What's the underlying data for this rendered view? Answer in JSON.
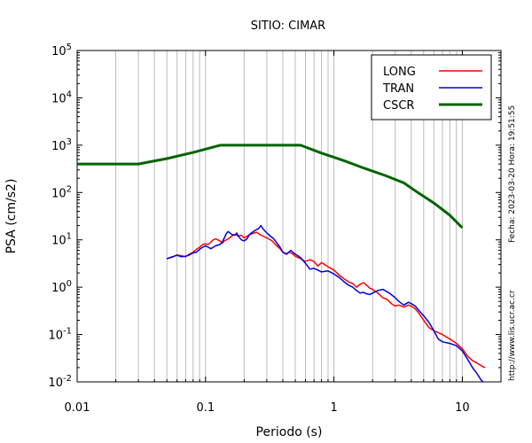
{
  "chart_data": {
    "type": "line",
    "title": "SITIO: CIMAR",
    "xlabel": "Periodo (s)",
    "ylabel": "PSA (cm/s2)",
    "xscale": "log",
    "yscale": "log",
    "xlim": [
      0.01,
      20
    ],
    "ylim": [
      0.01,
      100000
    ],
    "x_ticks": [
      {
        "value": 0.01,
        "label": "0.01"
      },
      {
        "value": 0.1,
        "label": "0.1"
      },
      {
        "value": 1,
        "label": "1"
      },
      {
        "value": 10,
        "label": "10"
      }
    ],
    "y_ticks": [
      {
        "value": 0.01,
        "base": "10",
        "exp": "-2"
      },
      {
        "value": 0.1,
        "base": "10",
        "exp": "-1"
      },
      {
        "value": 1,
        "base": "10",
        "exp": "0"
      },
      {
        "value": 10,
        "base": "10",
        "exp": "1"
      },
      {
        "value": 100,
        "base": "10",
        "exp": "2"
      },
      {
        "value": 1000,
        "base": "10",
        "exp": "3"
      },
      {
        "value": 10000,
        "base": "10",
        "exp": "4"
      },
      {
        "value": 100000,
        "base": "10",
        "exp": "5"
      }
    ],
    "grid": true,
    "legend_position": "top-right",
    "side_notes": [
      "Fecha: 2023-03-20 Hora: 19:51:55",
      "http://www.lis.ucr.ac.cr"
    ],
    "series": [
      {
        "name": "LONG",
        "color": "#ff0000",
        "width": 1.5,
        "points": [
          [
            0.05,
            4.0
          ],
          [
            0.055,
            4.3
          ],
          [
            0.06,
            4.8
          ],
          [
            0.065,
            4.6
          ],
          [
            0.07,
            4.4
          ],
          [
            0.075,
            5.0
          ],
          [
            0.08,
            5.5
          ],
          [
            0.085,
            6.3
          ],
          [
            0.09,
            7.0
          ],
          [
            0.095,
            8.0
          ],
          [
            0.1,
            8.2
          ],
          [
            0.105,
            8.0
          ],
          [
            0.11,
            9.0
          ],
          [
            0.115,
            10.0
          ],
          [
            0.12,
            10.5
          ],
          [
            0.13,
            9.5
          ],
          [
            0.135,
            8.5
          ],
          [
            0.14,
            9.5
          ],
          [
            0.15,
            10.5
          ],
          [
            0.16,
            12.0
          ],
          [
            0.17,
            13.0
          ],
          [
            0.18,
            12.0
          ],
          [
            0.19,
            12.5
          ],
          [
            0.2,
            11.0
          ],
          [
            0.21,
            12.0
          ],
          [
            0.23,
            13.5
          ],
          [
            0.25,
            14.5
          ],
          [
            0.27,
            12.5
          ],
          [
            0.29,
            11.5
          ],
          [
            0.31,
            10.5
          ],
          [
            0.33,
            9.5
          ],
          [
            0.35,
            8.0
          ],
          [
            0.38,
            6.5
          ],
          [
            0.4,
            5.5
          ],
          [
            0.42,
            5.0
          ],
          [
            0.45,
            5.5
          ],
          [
            0.48,
            5.0
          ],
          [
            0.5,
            4.5
          ],
          [
            0.55,
            4.0
          ],
          [
            0.6,
            3.5
          ],
          [
            0.65,
            3.8
          ],
          [
            0.7,
            3.5
          ],
          [
            0.75,
            2.8
          ],
          [
            0.8,
            3.3
          ],
          [
            0.85,
            3.0
          ],
          [
            0.9,
            2.7
          ],
          [
            1.0,
            2.3
          ],
          [
            1.1,
            1.8
          ],
          [
            1.2,
            1.5
          ],
          [
            1.3,
            1.3
          ],
          [
            1.4,
            1.2
          ],
          [
            1.5,
            1.0
          ],
          [
            1.6,
            1.15
          ],
          [
            1.7,
            1.25
          ],
          [
            1.8,
            1.1
          ],
          [
            1.9,
            0.95
          ],
          [
            2.0,
            0.9
          ],
          [
            2.2,
            0.75
          ],
          [
            2.4,
            0.6
          ],
          [
            2.6,
            0.55
          ],
          [
            2.8,
            0.45
          ],
          [
            3.0,
            0.4
          ],
          [
            3.2,
            0.42
          ],
          [
            3.5,
            0.38
          ],
          [
            3.8,
            0.42
          ],
          [
            4.0,
            0.4
          ],
          [
            4.3,
            0.35
          ],
          [
            4.6,
            0.28
          ],
          [
            5.0,
            0.2
          ],
          [
            5.5,
            0.14
          ],
          [
            6.0,
            0.12
          ],
          [
            6.5,
            0.11
          ],
          [
            7.0,
            0.1
          ],
          [
            8.0,
            0.08
          ],
          [
            9.0,
            0.065
          ],
          [
            10.0,
            0.05
          ],
          [
            11.0,
            0.035
          ],
          [
            12.0,
            0.028
          ],
          [
            13.0,
            0.025
          ],
          [
            14.0,
            0.022
          ],
          [
            15.0,
            0.02
          ]
        ]
      },
      {
        "name": "TRAN",
        "color": "#0000dd",
        "width": 1.5,
        "points": [
          [
            0.05,
            4.0
          ],
          [
            0.055,
            4.4
          ],
          [
            0.06,
            4.7
          ],
          [
            0.065,
            4.4
          ],
          [
            0.07,
            4.5
          ],
          [
            0.075,
            4.8
          ],
          [
            0.08,
            5.3
          ],
          [
            0.085,
            5.5
          ],
          [
            0.09,
            6.3
          ],
          [
            0.095,
            7.0
          ],
          [
            0.1,
            7.5
          ],
          [
            0.105,
            7.0
          ],
          [
            0.11,
            6.5
          ],
          [
            0.115,
            7.0
          ],
          [
            0.12,
            7.5
          ],
          [
            0.13,
            8.0
          ],
          [
            0.135,
            9.0
          ],
          [
            0.14,
            11.0
          ],
          [
            0.145,
            13.5
          ],
          [
            0.15,
            15.0
          ],
          [
            0.16,
            13.0
          ],
          [
            0.17,
            12.5
          ],
          [
            0.175,
            14.0
          ],
          [
            0.18,
            12.0
          ],
          [
            0.19,
            10.0
          ],
          [
            0.2,
            9.5
          ],
          [
            0.21,
            10.5
          ],
          [
            0.22,
            13.0
          ],
          [
            0.24,
            15.5
          ],
          [
            0.26,
            17.5
          ],
          [
            0.27,
            20.0
          ],
          [
            0.28,
            17.0
          ],
          [
            0.3,
            14.0
          ],
          [
            0.32,
            12.0
          ],
          [
            0.34,
            10.5
          ],
          [
            0.36,
            8.5
          ],
          [
            0.38,
            7.0
          ],
          [
            0.4,
            5.5
          ],
          [
            0.43,
            5.0
          ],
          [
            0.46,
            6.0
          ],
          [
            0.5,
            5.0
          ],
          [
            0.55,
            4.2
          ],
          [
            0.6,
            3.2
          ],
          [
            0.65,
            2.4
          ],
          [
            0.7,
            2.5
          ],
          [
            0.75,
            2.3
          ],
          [
            0.8,
            2.1
          ],
          [
            0.9,
            2.2
          ],
          [
            1.0,
            1.9
          ],
          [
            1.1,
            1.6
          ],
          [
            1.2,
            1.3
          ],
          [
            1.3,
            1.1
          ],
          [
            1.4,
            1.0
          ],
          [
            1.5,
            0.85
          ],
          [
            1.6,
            0.75
          ],
          [
            1.7,
            0.78
          ],
          [
            1.8,
            0.72
          ],
          [
            1.9,
            0.7
          ],
          [
            2.0,
            0.75
          ],
          [
            2.2,
            0.85
          ],
          [
            2.4,
            0.9
          ],
          [
            2.5,
            0.85
          ],
          [
            2.7,
            0.75
          ],
          [
            3.0,
            0.6
          ],
          [
            3.2,
            0.5
          ],
          [
            3.5,
            0.42
          ],
          [
            3.8,
            0.48
          ],
          [
            4.0,
            0.45
          ],
          [
            4.3,
            0.4
          ],
          [
            4.6,
            0.32
          ],
          [
            5.0,
            0.25
          ],
          [
            5.5,
            0.18
          ],
          [
            6.0,
            0.12
          ],
          [
            6.5,
            0.08
          ],
          [
            7.0,
            0.07
          ],
          [
            8.0,
            0.065
          ],
          [
            9.0,
            0.058
          ],
          [
            10.0,
            0.045
          ],
          [
            11.0,
            0.03
          ],
          [
            12.0,
            0.02
          ],
          [
            13.0,
            0.015
          ],
          [
            14.0,
            0.011
          ],
          [
            14.5,
            0.01
          ]
        ]
      },
      {
        "name": "CSCR",
        "color": "#006400",
        "width": 3,
        "points": [
          [
            0.01,
            400
          ],
          [
            0.03,
            400
          ],
          [
            0.05,
            520
          ],
          [
            0.08,
            700
          ],
          [
            0.13,
            1000
          ],
          [
            0.55,
            1000
          ],
          [
            0.8,
            680
          ],
          [
            1.2,
            470
          ],
          [
            1.7,
            330
          ],
          [
            2.5,
            230
          ],
          [
            3.5,
            160
          ],
          [
            4.5,
            100
          ],
          [
            6.0,
            60
          ],
          [
            8.0,
            33
          ],
          [
            10.0,
            18
          ]
        ]
      }
    ]
  }
}
